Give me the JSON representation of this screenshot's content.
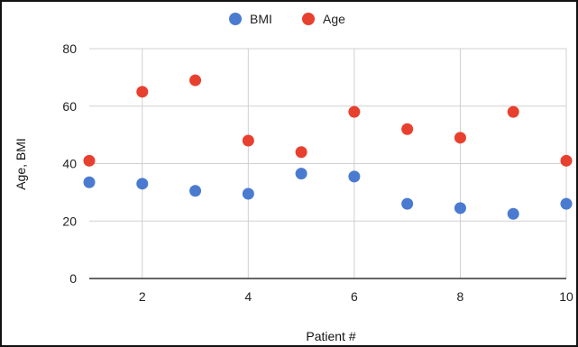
{
  "chart_data": {
    "type": "scatter",
    "xlabel": "Patient #",
    "ylabel": "Age, BMI",
    "xlim": [
      1,
      10
    ],
    "ylim": [
      0,
      80
    ],
    "xticks": [
      2,
      4,
      6,
      8,
      10
    ],
    "yticks": [
      0,
      20,
      40,
      60,
      80
    ],
    "grid": true,
    "legend_position": "top-center",
    "x": [
      1,
      2,
      3,
      4,
      5,
      6,
      7,
      8,
      9,
      10
    ],
    "series": [
      {
        "name": "BMI",
        "color": "#4a7bd0",
        "values": [
          33.5,
          33,
          30.5,
          29.5,
          36.5,
          35.5,
          26,
          24.5,
          22.5,
          26
        ]
      },
      {
        "name": "Age",
        "color": "#e8402f",
        "values": [
          41,
          65,
          69,
          48,
          44,
          58,
          52,
          49,
          58,
          41
        ]
      }
    ]
  }
}
